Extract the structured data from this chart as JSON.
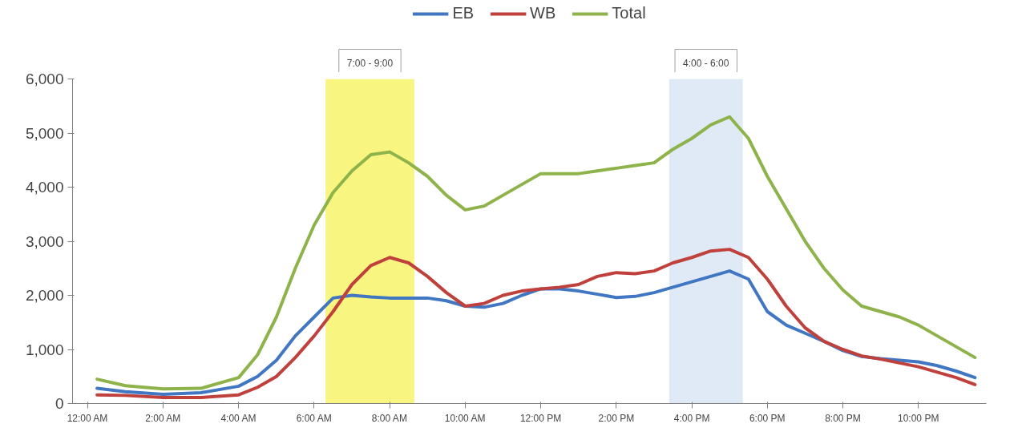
{
  "chart_data": {
    "type": "line",
    "x": [
      0.25,
      1,
      2,
      3,
      4,
      4.5,
      5,
      5.5,
      6,
      6.5,
      7,
      7.5,
      8,
      8.5,
      9,
      9.5,
      10,
      10.5,
      11,
      11.5,
      12,
      12.5,
      13,
      13.5,
      14,
      14.5,
      15,
      15.5,
      16,
      16.5,
      17,
      17.5,
      18,
      18.5,
      19,
      19.5,
      20,
      20.5,
      21,
      21.5,
      22,
      22.5,
      23,
      23.5
    ],
    "series": [
      {
        "name": "EB",
        "color": "#4177c2",
        "values": [
          280,
          220,
          170,
          200,
          320,
          500,
          800,
          1250,
          1600,
          1950,
          2000,
          1970,
          1950,
          1950,
          1950,
          1900,
          1800,
          1780,
          1850,
          2000,
          2120,
          2120,
          2080,
          2020,
          1960,
          1980,
          2050,
          2150,
          2250,
          2350,
          2450,
          2300,
          1700,
          1450,
          1300,
          1150,
          980,
          870,
          830,
          800,
          770,
          700,
          600,
          480
        ]
      },
      {
        "name": "WB",
        "color": "#c0403c",
        "values": [
          160,
          150,
          110,
          110,
          160,
          300,
          500,
          850,
          1250,
          1700,
          2200,
          2550,
          2700,
          2600,
          2350,
          2050,
          1800,
          1850,
          2000,
          2080,
          2120,
          2150,
          2200,
          2350,
          2420,
          2400,
          2450,
          2600,
          2700,
          2820,
          2850,
          2700,
          2300,
          1800,
          1400,
          1150,
          1000,
          880,
          820,
          750,
          680,
          580,
          480,
          350
        ]
      },
      {
        "name": "Total",
        "color": "#8db34a",
        "values": [
          450,
          330,
          270,
          280,
          480,
          900,
          1600,
          2500,
          3300,
          3900,
          4300,
          4600,
          4650,
          4450,
          4200,
          3850,
          3580,
          3650,
          3850,
          4050,
          4250,
          4250,
          4250,
          4300,
          4350,
          4400,
          4450,
          4700,
          4900,
          5150,
          5300,
          4900,
          4200,
          3600,
          3000,
          2500,
          2100,
          1800,
          1700,
          1600,
          1450,
          1250,
          1050,
          850
        ]
      }
    ],
    "xlim": [
      -0.4,
      23.8
    ],
    "xticks": [
      {
        "value": 0,
        "label": "12:00 AM"
      },
      {
        "value": 2,
        "label": "2:00 AM"
      },
      {
        "value": 4,
        "label": "4:00 AM"
      },
      {
        "value": 6,
        "label": "6:00 AM"
      },
      {
        "value": 8,
        "label": "8:00 AM"
      },
      {
        "value": 10,
        "label": "10:00 AM"
      },
      {
        "value": 12,
        "label": "12:00 PM"
      },
      {
        "value": 14,
        "label": "2:00 PM"
      },
      {
        "value": 16,
        "label": "4:00 PM"
      },
      {
        "value": 18,
        "label": "6:00 PM"
      },
      {
        "value": 20,
        "label": "8:00 PM"
      },
      {
        "value": 22,
        "label": "10:00 PM"
      }
    ],
    "ylim": [
      0,
      6000
    ],
    "yticks": [
      0,
      {
        "value": 1000,
        "label": "1,000"
      },
      {
        "value": 2000,
        "label": "2,000"
      },
      {
        "value": 3000,
        "label": "3,000"
      },
      {
        "value": 4000,
        "label": "4,000"
      },
      {
        "value": 5000,
        "label": "5,000"
      },
      {
        "value": 6000,
        "label": "6,000"
      }
    ],
    "bands": [
      {
        "axis": "x",
        "from": 6.3,
        "to": 8.65,
        "label": "7:00 - 9:00",
        "color": "#f7f36a"
      },
      {
        "axis": "x",
        "from": 15.4,
        "to": 17.35,
        "label": "4:00 - 6:00",
        "color": "#dbe6f4"
      }
    ],
    "legend": "top",
    "grid": false,
    "marker": "none",
    "line_style": "solid"
  }
}
